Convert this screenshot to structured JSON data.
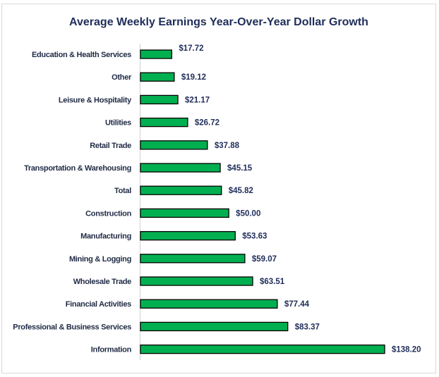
{
  "chart_data": {
    "type": "bar",
    "orientation": "horizontal",
    "title": "Average Weekly Earnings Year-Over-Year Dollar Growth",
    "xlabel": "",
    "ylabel": "",
    "categories": [
      "Education & Health Services",
      "Other",
      "Leisure & Hospitality",
      "Utilities",
      "Retail Trade",
      "Transportation & Warehousing",
      "Total",
      "Construction",
      "Manufacturing",
      "Mining & Logging",
      "Wholesale Trade",
      "Financial Activities",
      "Professional & Business Services",
      "Information"
    ],
    "values": [
      17.72,
      19.12,
      21.17,
      26.72,
      37.88,
      45.15,
      45.82,
      50.0,
      53.63,
      59.07,
      63.51,
      77.44,
      83.37,
      138.2
    ],
    "data_labels": [
      "$17.72",
      "$19.12",
      "$21.17",
      "$26.72",
      "$37.88",
      "$45.15",
      "$45.82",
      "$50.00",
      "$53.63",
      "$59.07",
      "$63.51",
      "$77.44",
      "$83.37",
      "$138.20"
    ],
    "xlim": [
      0,
      138.2
    ],
    "grid": false,
    "legend": "none",
    "colors": {
      "bar": "#00b050",
      "bar_outline": "#000000",
      "title": "#1f2d5a",
      "labels": "#1f2d5a"
    }
  }
}
